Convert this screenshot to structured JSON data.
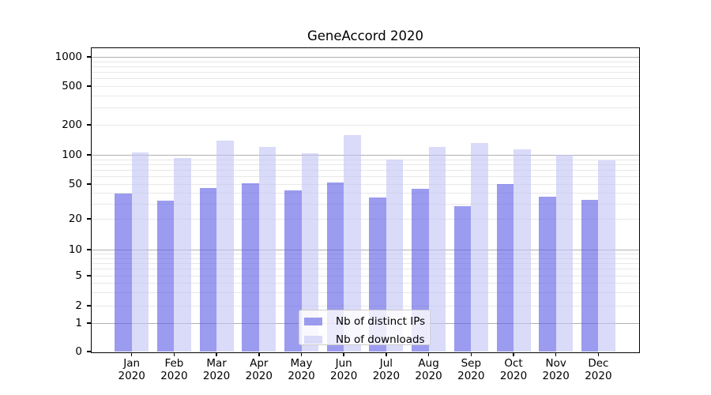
{
  "chart_data": {
    "type": "bar",
    "title": "GeneAccord 2020",
    "categories": [
      "Jan",
      "Feb",
      "Mar",
      "Apr",
      "May",
      "Jun",
      "Jul",
      "Aug",
      "Sep",
      "Oct",
      "Nov",
      "Dec"
    ],
    "category_year": "2020",
    "series": [
      {
        "name": "Nb of distinct IPs",
        "values": [
          39,
          32,
          45,
          51,
          42,
          52,
          35,
          44,
          28,
          50,
          36,
          33
        ],
        "color": "#9b9bee",
        "fill": "rgba(88,88,228,0.6)"
      },
      {
        "name": "Nb of downloads",
        "values": [
          105,
          92,
          138,
          120,
          103,
          158,
          89,
          121,
          131,
          114,
          100,
          88
        ],
        "color": "#d9d9f9",
        "fill": "rgba(193,193,245,0.6)"
      }
    ],
    "y_ticks": [
      0,
      1,
      2,
      5,
      10,
      20,
      50,
      100,
      200,
      500,
      1000
    ],
    "yscale": "symlog",
    "ylim": [
      0,
      1300
    ],
    "grid": true,
    "legend_position": "lower center",
    "major_grid_values": [
      1,
      10,
      100,
      1000
    ],
    "minor_grid_values": [
      2,
      3,
      4,
      5,
      6,
      7,
      8,
      9,
      20,
      30,
      40,
      50,
      60,
      70,
      80,
      90,
      200,
      300,
      400,
      500,
      600,
      700,
      800,
      900
    ]
  },
  "colors": {
    "major_grid": "#b0b0b0",
    "minor_grid": "#e8e8e8",
    "axis": "#000000",
    "legend_border": "#cccccc",
    "background": "#ffffff"
  }
}
